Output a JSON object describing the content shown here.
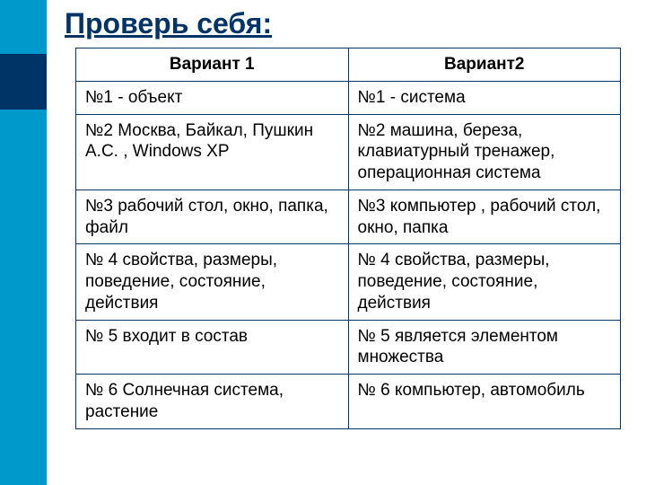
{
  "title": "Проверь себя:",
  "table": {
    "columns": [
      "Вариант 1",
      "Вариант2"
    ],
    "rows": [
      [
        "№1   - объект",
        "№1 - система"
      ],
      [
        "№2       Москва, Байкал, Пушкин А.С. ,  Windows XP",
        "№2      машина, береза, клавиатурный тренажер, операционная система"
      ],
      [
        "№3      рабочий стол, окно, папка, файл",
        "№3         компьютер ,  рабочий стол, окно, папка"
      ],
      [
        "№ 4   свойства, размеры, поведение,  состояние, действия",
        "№ 4   свойства, размеры, поведение,  состояние, действия"
      ],
      [
        "№ 5  входит в состав",
        "№ 5  является элементом множества"
      ],
      [
        "№ 6   Солнечная система, растение",
        "№ 6   компьютер, автомобиль"
      ]
    ]
  },
  "styling": {
    "sidebar_color": "#0099cc",
    "sidebar_dark_block": "#003366",
    "title_color": "#003366",
    "border_color": "#003366",
    "background_color": "#ffffff",
    "title_fontsize": 32,
    "cell_fontsize": 19
  }
}
